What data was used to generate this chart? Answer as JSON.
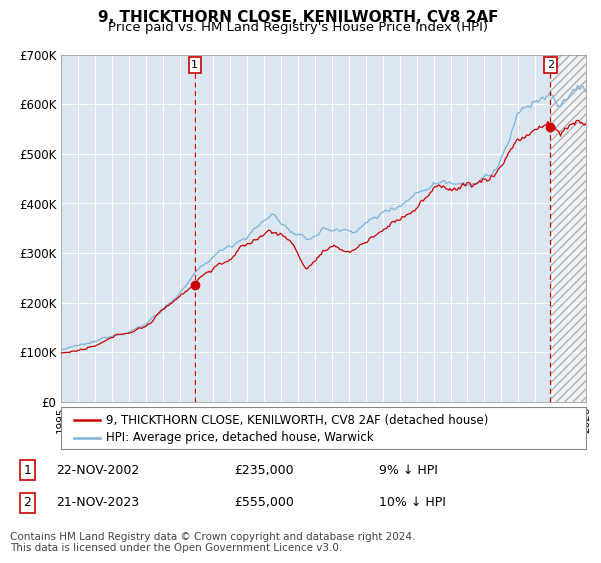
{
  "title": "9, THICKTHORN CLOSE, KENILWORTH, CV8 2AF",
  "subtitle": "Price paid vs. HM Land Registry's House Price Index (HPI)",
  "ylim": [
    0,
    700000
  ],
  "yticks": [
    0,
    100000,
    200000,
    300000,
    400000,
    500000,
    600000,
    700000
  ],
  "ytick_labels": [
    "£0",
    "£100K",
    "£200K",
    "£300K",
    "£400K",
    "£500K",
    "£600K",
    "£700K"
  ],
  "x_start_year": 1995,
  "x_end_year": 2026,
  "plot_bg_color": "#dce6f1",
  "hpi_color": "#7ab4d8",
  "price_color": "#cc0000",
  "vline_color": "#cc0000",
  "marker_color": "#cc0000",
  "sale1_date": 2002.9,
  "sale1_price": 235000,
  "sale1_label": "1",
  "sale2_date": 2023.9,
  "sale2_price": 555000,
  "sale2_label": "2",
  "legend_line1": "9, THICKTHORN CLOSE, KENILWORTH, CV8 2AF (detached house)",
  "legend_line2": "HPI: Average price, detached house, Warwick",
  "table_row1_num": "1",
  "table_row1_date": "22-NOV-2002",
  "table_row1_price": "£235,000",
  "table_row1_hpi": "9% ↓ HPI",
  "table_row2_num": "2",
  "table_row2_date": "21-NOV-2023",
  "table_row2_price": "£555,000",
  "table_row2_hpi": "10% ↓ HPI",
  "footer": "Contains HM Land Registry data © Crown copyright and database right 2024.\nThis data is licensed under the Open Government Licence v3.0.",
  "title_fontsize": 11,
  "subtitle_fontsize": 9.5,
  "tick_fontsize": 8.5,
  "legend_fontsize": 8.5,
  "table_fontsize": 9,
  "footer_fontsize": 7.5
}
